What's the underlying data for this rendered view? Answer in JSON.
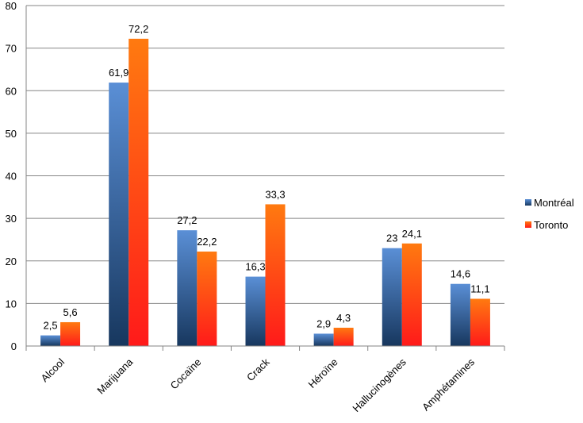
{
  "chart_data": {
    "type": "bar",
    "categories": [
      "Alcool",
      "Marijuana",
      "Cocaïne",
      "Crack",
      "Héroïne",
      "Hallucinogènes",
      "Amphétamines"
    ],
    "series": [
      {
        "name": "Montréal",
        "values": [
          2.5,
          61.9,
          27.2,
          16.3,
          2.9,
          23,
          14.6
        ],
        "labels": [
          "2,5",
          "61,9",
          "27,2",
          "16,3",
          "2,9",
          "23",
          "14,6"
        ],
        "color": "#4a7ebb"
      },
      {
        "name": "Toronto",
        "values": [
          5.6,
          72.2,
          22.2,
          33.3,
          4.3,
          24.1,
          11.1
        ],
        "labels": [
          "5,6",
          "72,2",
          "22,2",
          "33,3",
          "4,3",
          "24,1",
          "11,1"
        ],
        "color": "#ff5a10"
      }
    ],
    "ylim": [
      0,
      80
    ],
    "yticks": [
      0,
      10,
      20,
      30,
      40,
      50,
      60,
      70,
      80
    ],
    "grid": true,
    "legend_position": "right",
    "title": "",
    "xlabel": "",
    "ylabel": ""
  }
}
